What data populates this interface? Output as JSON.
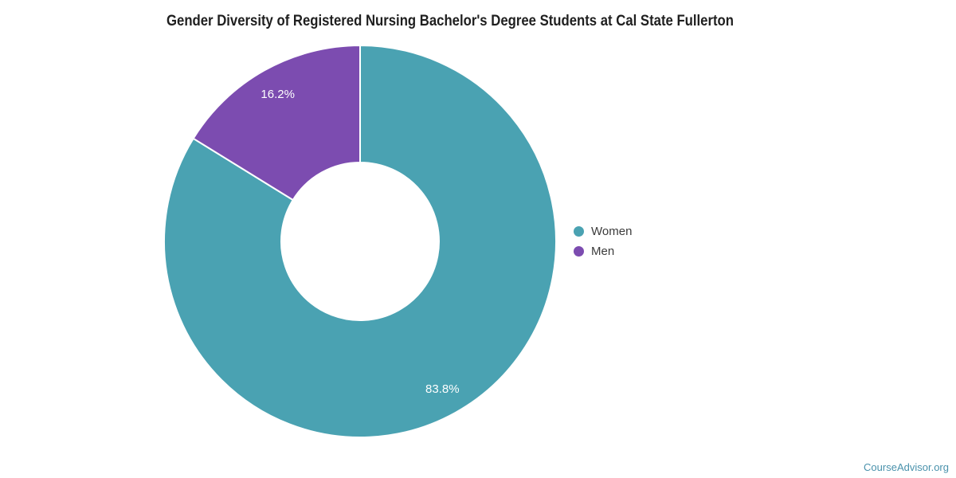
{
  "title": "Gender Diversity of Registered Nursing Bachelor's Degree Students at Cal State Fullerton",
  "footer": {
    "brand": "CourseAdvisor.org",
    "color": "#4A92AC"
  },
  "legend": {
    "position": "right"
  },
  "chart_data": {
    "type": "pie",
    "subtype": "donut",
    "title": "Gender Diversity of Registered Nursing Bachelor's Degree Students at Cal State Fullerton",
    "start_angle": "top",
    "direction": "clockwise",
    "inner_radius_ratio": 0.4,
    "legend_position": "right",
    "label_color": "#FFFFFF",
    "separator_color": "#FFFFFF",
    "slices": [
      {
        "label": "Women",
        "value": 83.8,
        "display": "83.8%",
        "color": "#4AA2B2"
      },
      {
        "label": "Men",
        "value": 16.2,
        "display": "16.2%",
        "color": "#7C4CB0"
      }
    ]
  }
}
